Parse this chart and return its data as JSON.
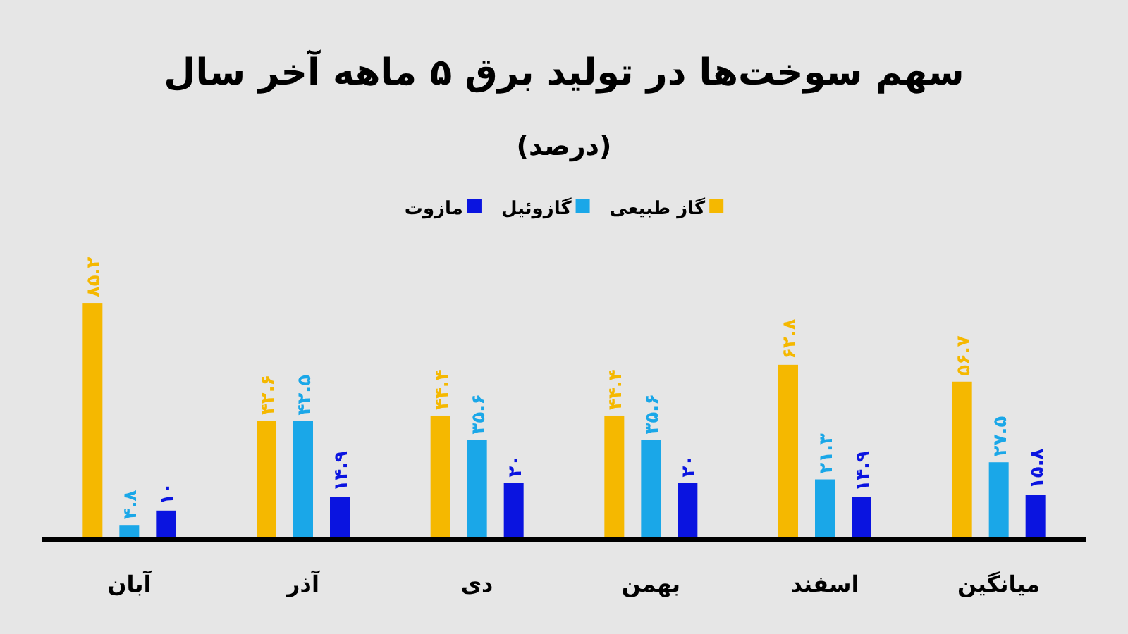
{
  "chart_data": {
    "type": "bar",
    "title": "سهم سوخت‌ها در تولید برق ۵ ماهه آخر سال",
    "subtitle": "(درصد)",
    "categories": [
      "آبان",
      "آذر",
      "دی",
      "بهمن",
      "اسفند",
      "میانگین"
    ],
    "series": [
      {
        "name": "گاز طبیعی",
        "color": "#f5b800",
        "values": [
          85.2,
          42.6,
          44.4,
          44.4,
          62.8,
          56.7
        ],
        "value_labels": [
          "۸۵.۲",
          "۴۲.۶",
          "۴۴.۴",
          "۴۴.۴",
          "۶۲.۸",
          "۵۶.۷"
        ]
      },
      {
        "name": "گازوئیل",
        "color": "#1aa7e8",
        "values": [
          4.8,
          42.5,
          35.6,
          35.6,
          21.3,
          27.5
        ],
        "value_labels": [
          "۴.۸",
          "۴۲.۵",
          "۳۵.۶",
          "۳۵.۶",
          "۲۱.۳",
          "۲۷.۵"
        ]
      },
      {
        "name": "مازوت",
        "color": "#0a14e0",
        "values": [
          10,
          14.9,
          20,
          20,
          14.9,
          15.8
        ],
        "value_labels": [
          "۱۰",
          "۱۴.۹",
          "۲۰",
          "۲۰",
          "۱۴.۹",
          "۱۵.۸"
        ]
      }
    ],
    "legend": "top"
  }
}
